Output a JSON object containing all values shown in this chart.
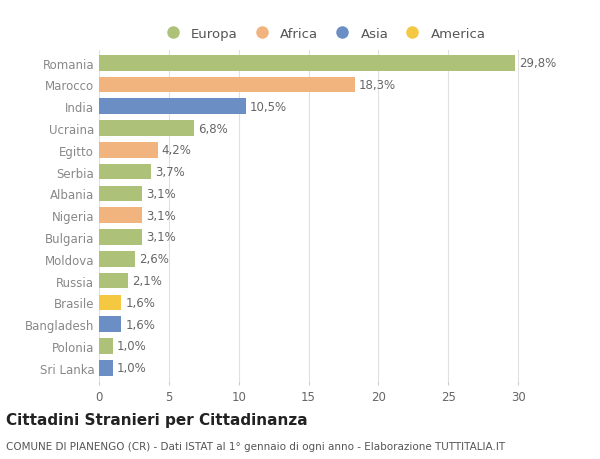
{
  "countries": [
    "Romania",
    "Marocco",
    "India",
    "Ucraina",
    "Egitto",
    "Serbia",
    "Albania",
    "Nigeria",
    "Bulgaria",
    "Moldova",
    "Russia",
    "Brasile",
    "Bangladesh",
    "Polonia",
    "Sri Lanka"
  ],
  "values": [
    29.8,
    18.3,
    10.5,
    6.8,
    4.2,
    3.7,
    3.1,
    3.1,
    3.1,
    2.6,
    2.1,
    1.6,
    1.6,
    1.0,
    1.0
  ],
  "labels": [
    "29,8%",
    "18,3%",
    "10,5%",
    "6,8%",
    "4,2%",
    "3,7%",
    "3,1%",
    "3,1%",
    "3,1%",
    "2,6%",
    "2,1%",
    "1,6%",
    "1,6%",
    "1,0%",
    "1,0%"
  ],
  "colors": [
    "#adc178",
    "#f2b47e",
    "#6b8fc4",
    "#adc178",
    "#f2b47e",
    "#adc178",
    "#adc178",
    "#f2b47e",
    "#adc178",
    "#adc178",
    "#adc178",
    "#f5c842",
    "#6b8fc4",
    "#adc178",
    "#6b8fc4"
  ],
  "legend_labels": [
    "Europa",
    "Africa",
    "Asia",
    "America"
  ],
  "legend_colors": [
    "#adc178",
    "#f2b47e",
    "#6b8fc4",
    "#f5c842"
  ],
  "title": "Cittadini Stranieri per Cittadinanza",
  "subtitle": "COMUNE DI PIANENGO (CR) - Dati ISTAT al 1° gennaio di ogni anno - Elaborazione TUTTITALIA.IT",
  "xlim": [
    0,
    32
  ],
  "xticks": [
    0,
    5,
    10,
    15,
    20,
    25,
    30
  ],
  "background_color": "#ffffff",
  "grid_color": "#e0e0e0",
  "bar_height": 0.72,
  "label_fontsize": 8.5,
  "tick_fontsize": 8.5,
  "title_fontsize": 11,
  "subtitle_fontsize": 7.5
}
